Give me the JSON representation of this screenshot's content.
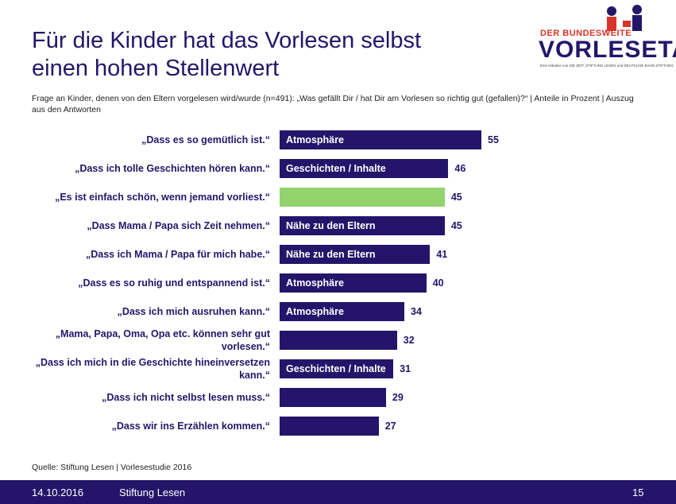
{
  "title": "Für die Kinder hat das Vorlesen selbst einen hohen Stellenwert",
  "logo": {
    "top": "DER BUNDESWEITE",
    "main": "VORLESETAG",
    "tagline": "Eine Initiative von DIE ZEIT, STIFTUNG LESEN und DEUTSCHE BAHN STIFTUNG"
  },
  "chart_data": {
    "type": "bar",
    "orientation": "horizontal",
    "subtitle": "Frage an Kinder, denen von den Eltern vorgelesen wird/wurde (n=491): „Was gefällt Dir / hat Dir am Vorlesen so richtig gut (gefallen)?“ | Anteile in Prozent | Auszug aus den Antworten",
    "categories": [
      "„Dass es so gemütlich ist.“",
      "„Dass ich tolle Geschichten hören kann.“",
      "„Es ist einfach schön, wenn jemand vorliest.“",
      "„Dass Mama / Papa sich Zeit nehmen.“",
      "„Dass ich Mama / Papa für mich habe.“",
      "„Dass es so ruhig und entspannend ist.“",
      "„Dass ich mich ausruhen kann.“",
      "„Mama, Papa, Oma, Opa etc. können sehr gut vorlesen.“",
      "„Dass ich mich in die Geschichte hineinversetzen kann.“",
      "„Dass ich nicht selbst lesen muss.“",
      "„Dass wir ins Erzählen kommen.“"
    ],
    "values": [
      55,
      46,
      45,
      45,
      41,
      40,
      34,
      32,
      31,
      29,
      27
    ],
    "colors": [
      "#24156b",
      "#24156b",
      "#92d36e",
      "#24156b",
      "#24156b",
      "#24156b",
      "#24156b",
      "#24156b",
      "#24156b",
      "#24156b",
      "#24156b"
    ],
    "bar_labels": [
      "Atmosphäre",
      "Geschichten / Inhalte",
      null,
      "Nähe zu den Eltern",
      "Nähe zu den Eltern",
      "Atmosphäre",
      "Atmosphäre",
      null,
      "Geschichten / Inhalte",
      null,
      null
    ],
    "source": "Quelle: Stiftung Lesen | Vorlesestudie 2016"
  },
  "footer": {
    "date": "14.10.2016",
    "organization": "Stiftung Lesen",
    "page": "15"
  }
}
